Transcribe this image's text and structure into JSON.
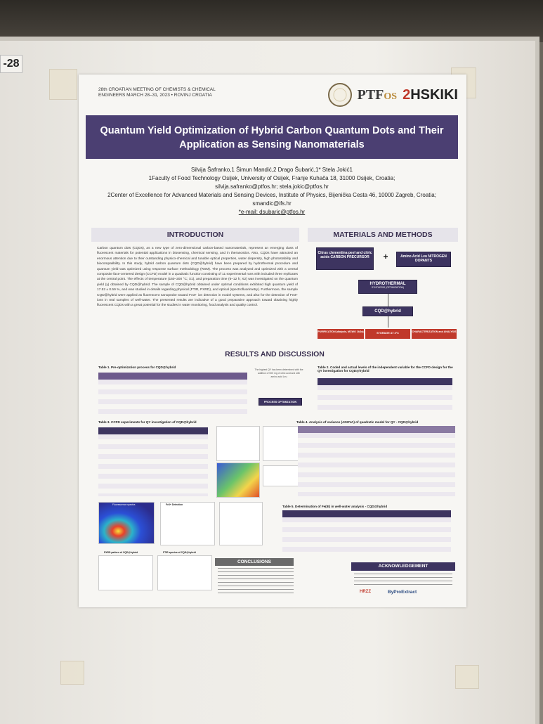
{
  "scene": {
    "board_tag": "-28"
  },
  "poster": {
    "meeting": "28th CROATIAN MEETING OF CHEMISTS & CHEMICAL ENGINEERS MARCH 28–31, 2023 • ROVINJ CROATIA",
    "logo_ptf": "PTF",
    "logo_os": "OS",
    "logo_hskiki": "HSKIKI",
    "title": "Quantum Yield Optimization of Hybrid Carbon Quantum Dots and Their Application as Sensing Nanomaterials",
    "authors": "Silvija Šafranko,1 Šimun Mandić,2 Drago Šubarić,1* Stela Jokić1",
    "affil1": "1Faculty of Food Technology Osijek, University of Osijek, Franje Kuhača 18, 31000 Osijek, Croatia;",
    "emails1": "silvija.safranko@ptfos.hr; stela.jokic@ptfos.hr",
    "affil2": "2Center of Excellence for Advanced Materials and Sensing Devices, Institute of Physics, Bijenička Cesta 46, 10000 Zagreb, Croatia; smandic@ifs.hr",
    "email_corr": "*e-mail: dsubaric@ptfos.hr",
    "intro_title": "INTRODUCTION",
    "mm_title": "MATERIALS AND METHODS",
    "results_title": "RESULTS AND DISCUSSION",
    "intro_text": "Carbon quantum dots (CQDs), as a new type of zero-dimensional carbon-based nanomaterials, represent an emerging class of fluorescent materials for potential applications in biosensing, chemical sensing, and in theranostics. Also, CQDs have attracted an enormous attention due to their outstanding physico-chemical and tunable optical properties, water dispersity, high photostability and biocompatibility. In this study, hybrid carbon quantum dots (CQD@hybrid) have been prepared by hydrothermal procedure and quantum yield was optimized using response surface methodology (RSM). The process was analyzed and optimized with a central composite face-centered design (CCFD) model in a quadratic function consisting of 11 experimental runs with included three replicates at the central point. The effects of temperature (160–200 °C; X1), and preparation time (6–12 h; X2) was investigated on the quantum yield (y) obtained by CQD@hybrid. The sample of CQD@hybrid obtained under optimal conditions exhibited high quantum yield of 17.52 ± 0.59 %, and was studied in details regarding physical (FTIR, PXRD), and optical (spectrofluorimetry). Furthermore, the sample CQD@hybrid were applied as fluorescent nanoprobe toward Fe3+ ion detection in model systems, and also for the detection of Fe3+ ions in real samples of well-water. The presented results are indicative of a good preparative approach toward obtaining highly fluorescent CQDs with a great potential for the studies in water monitoring, food analysis and quality control.",
    "mm_precursor": "Citrus clementina peel and citric acids CARBON PRECURSOR",
    "mm_plus": "+",
    "mm_dopant": "Amino Acid Leu NITROGEN DOPANTS",
    "mm_hydro": "HYDROTHERMAL",
    "mm_hydro_sub": "SYNTHESIS (OPTIMIZATION)",
    "mm_product": "CQD@hybrid",
    "mm_purif": "PURIFICATION (dialysis, MCWO 1kDa)",
    "mm_storage": "STORAGE AT 4°C",
    "mm_charact": "CHARACTERIZATION and ANALYSIS",
    "table1_cap": "Table 1. Pre-optimization process for CQD@hybrid",
    "table2_cap": "Table 2. Coded and actual levels of the independent variable for the CCFD design for the QY investigation for CQD@hybrid",
    "table3_cap": "Table 3. CCFD experiments for QY investigation of CQD@hybrid",
    "table4_cap": "Table 4. Analysis of variance (ANOVA) of quadratic model for QY - CQD@hybrid",
    "table5_cap": "Table 5. Determination of Fe(III) in well-water analysis - CQD@hybrid",
    "process_opt": "PROCESS OPTIMIZATION",
    "note_qy": "The highest QY has been determined with the addition of 500 mg of citric acid and with amino acid Leu",
    "fe_detection": "Fe3+ Detection",
    "fluor_spectra": "Fluorescence spectra",
    "pxrd": "PXRD pattern of CQD@hybrid",
    "ftir": "FTIR spectra of CQD@hybrid",
    "conclusions": "CONCLUSIONS",
    "ack": "ACKNOWLEDGEMENT",
    "hrzz": "HRZZ",
    "byproextract": "ByProExtract"
  },
  "colors": {
    "title_bar": "#4b3f72",
    "accent_red": "#c0392b",
    "dark_box": "#3d3460"
  }
}
